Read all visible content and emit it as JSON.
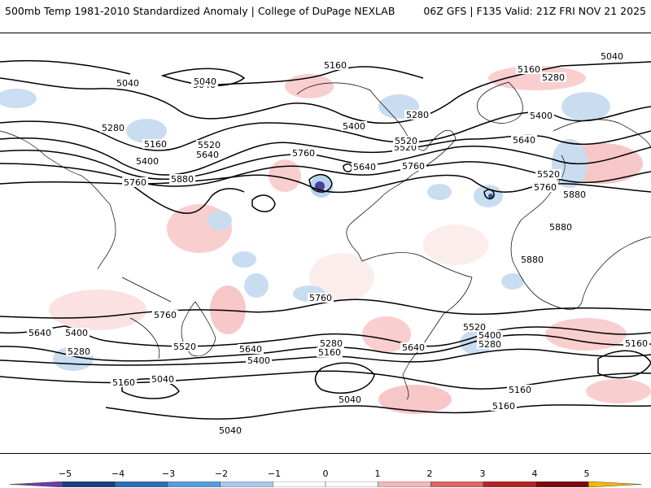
{
  "header": {
    "left": "500mb Temp 1981-2010 Standardized Anomaly | College of DuPage NEXLAB",
    "right": "06Z GFS | F135 Valid: 21Z FRI NOV 21 2025"
  },
  "contour_labels": {
    "l5160a": "5160",
    "l5040a": "5040",
    "l5040b": "5040",
    "l5040c": "5040",
    "l5160b": "5160",
    "l5280a": "5280",
    "l5400a": "5400",
    "l5280b": "5280",
    "l5160c": "5160",
    "l5280c": "5280",
    "l5520a": "5520",
    "l5640a": "5640",
    "l5400b": "5400",
    "l5760a": "5760",
    "l5520b": "5520",
    "l5640b": "5640",
    "l5760b": "5760",
    "l5880a": "5880",
    "l5400c": "5400",
    "l5640c": "5640",
    "l5520c": "5520",
    "l5760c": "5760",
    "l5880b": "5880",
    "l5880c": "5880",
    "l5880d": "5880",
    "l5760d": "5760",
    "l5760e": "5760",
    "l5760f": "5760",
    "l5640d": "5640",
    "l5400d": "5400",
    "l5280d": "5280",
    "l5520d": "5520",
    "l5640e": "5640",
    "l5400e": "5400",
    "l5280e": "5280",
    "l5160d": "5160",
    "l5640f": "5640",
    "l5520e": "5520",
    "l5400f": "5400",
    "l5280f": "5280",
    "l5160e": "5160",
    "l5160f": "5160",
    "l5040d": "5040",
    "l5040e": "5040",
    "l5160g": "5160",
    "l5040f": "5040",
    "l5160h": "5160",
    "l5040g": "5040",
    "l5520f": "5520"
  },
  "colorbar": {
    "ticks": [
      "−5",
      "−4",
      "−3",
      "−2",
      "−1",
      "0",
      "1",
      "2",
      "3",
      "4",
      "5"
    ],
    "colors": [
      "#6b3fa0",
      "#1f3d7a",
      "#2f6db5",
      "#5a9bd5",
      "#a9c8e8",
      "#ffffff",
      "#ffffff",
      "#f2b8b8",
      "#d9666a",
      "#b52225",
      "#7a0a0f",
      "#f5b800"
    ]
  }
}
